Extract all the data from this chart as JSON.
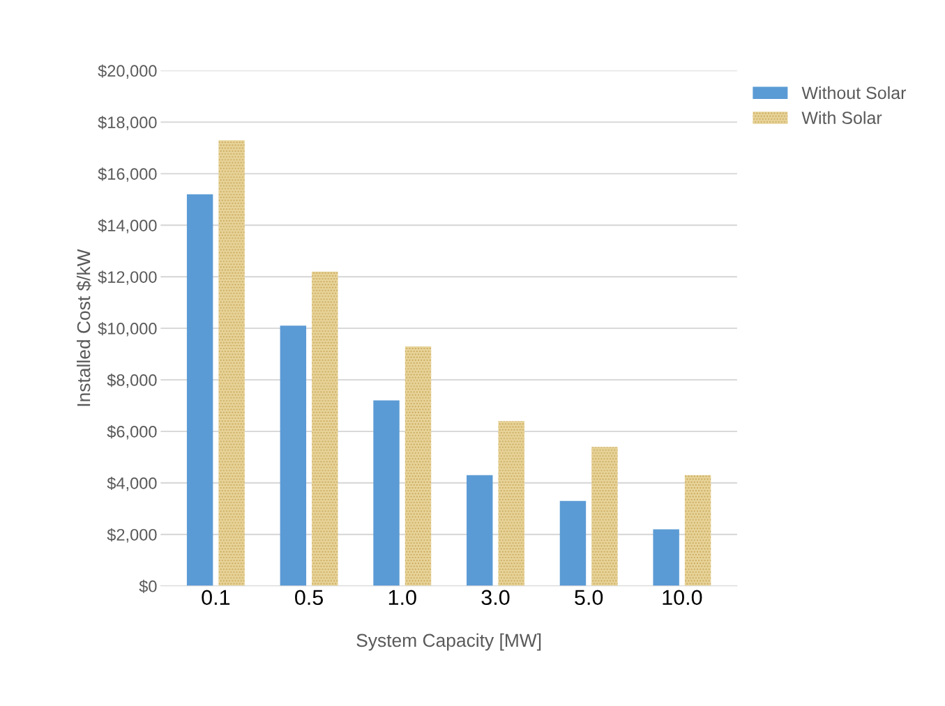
{
  "chart_data": {
    "type": "bar",
    "xlabel": "System Capacity [MW]",
    "ylabel": "Installed Cost $/kW",
    "categories": [
      "0.1",
      "0.5",
      "1.0",
      "3.0",
      "5.0",
      "10.0"
    ],
    "series": [
      {
        "name": "Without Solar",
        "color": "#5b9bd5",
        "values": [
          15200,
          10100,
          7200,
          4300,
          3300,
          2200
        ]
      },
      {
        "name": "With Solar",
        "color": "#e8d49a",
        "values": [
          17300,
          12200,
          9300,
          6400,
          5400,
          4300
        ]
      }
    ],
    "ylim": [
      0,
      20000
    ],
    "yticks": [
      {
        "value": 0,
        "label": "$0"
      },
      {
        "value": 2000,
        "label": "$2,000"
      },
      {
        "value": 4000,
        "label": "$4,000"
      },
      {
        "value": 6000,
        "label": "$6,000"
      },
      {
        "value": 8000,
        "label": "$8,000"
      },
      {
        "value": 10000,
        "label": "$10,000"
      },
      {
        "value": 12000,
        "label": "$12,000"
      },
      {
        "value": 14000,
        "label": "$14,000"
      },
      {
        "value": 16000,
        "label": "$16,000"
      },
      {
        "value": 18000,
        "label": "$18,000"
      },
      {
        "value": 20000,
        "label": "$20,000"
      }
    ],
    "grid": "y",
    "legend": "top right"
  }
}
